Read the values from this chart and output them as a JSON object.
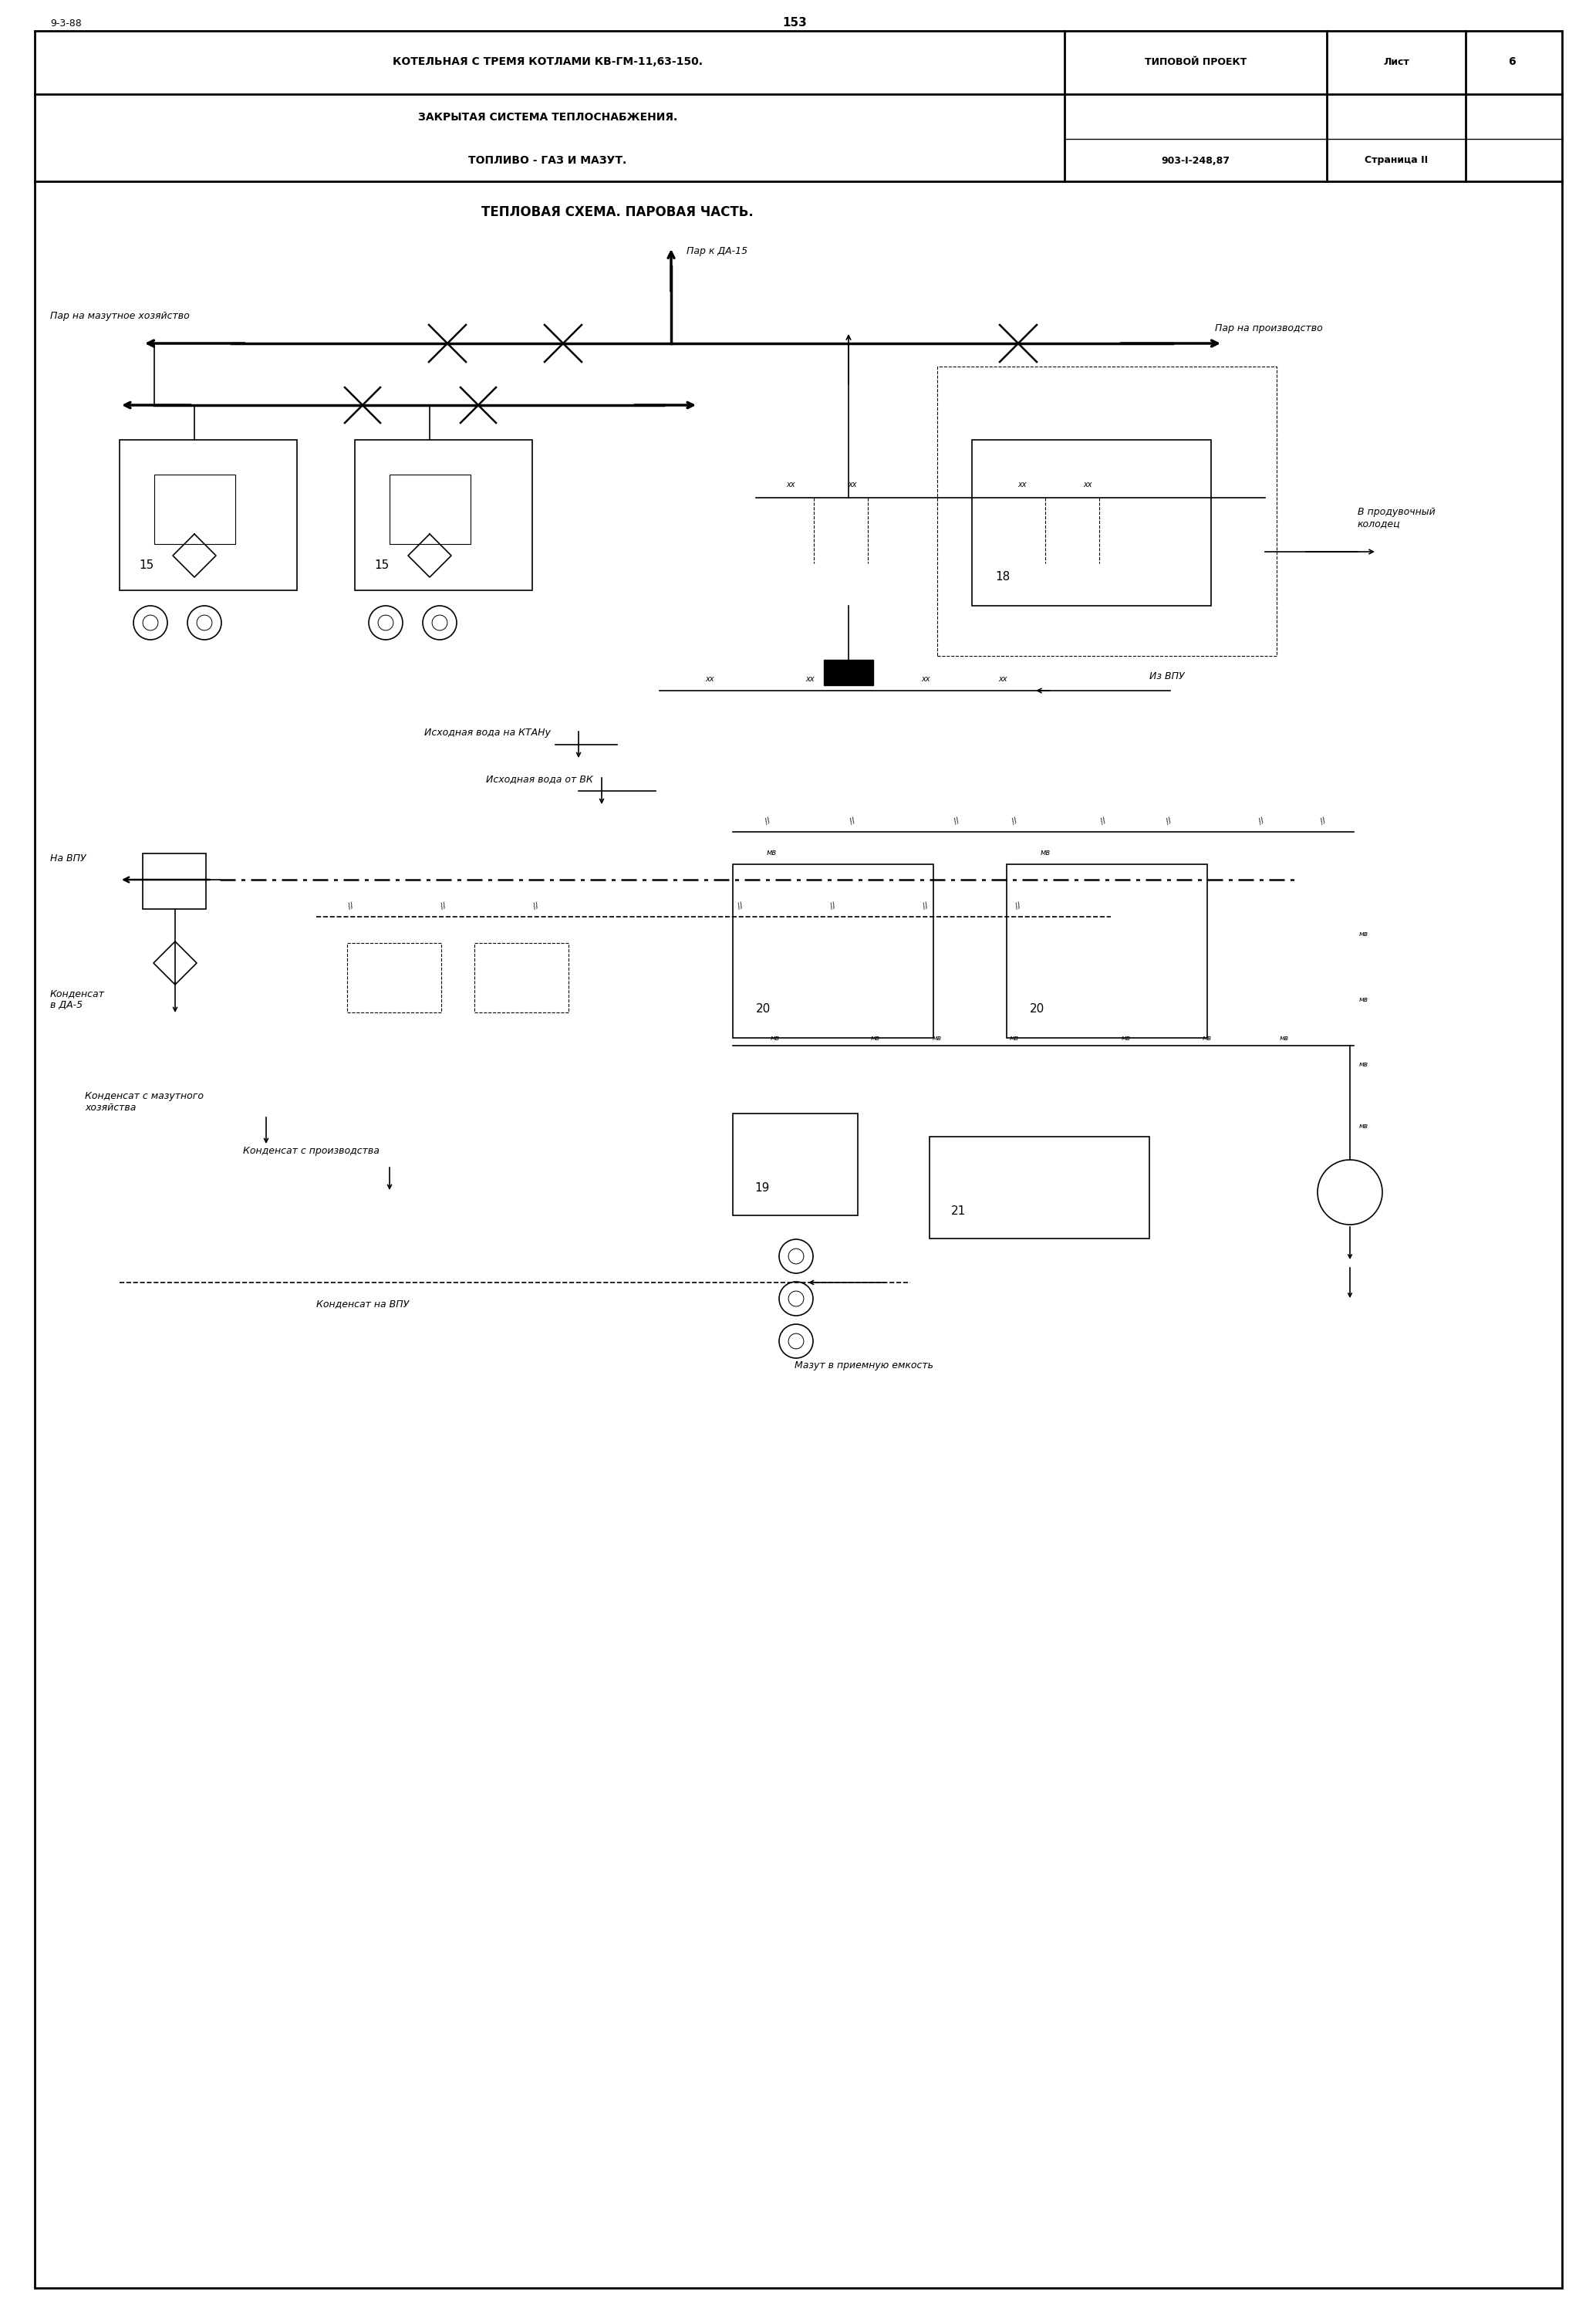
{
  "page_num": "153",
  "date_ref": "9-3-88",
  "title_main": "КОТЕЛЬНАЯ С ТРЕМЯ КОТЛАМИ КВ-ГМ-11,63-150.",
  "title_sub1": "ЗАКРЫТАЯ СИСТЕМА ТЕПЛОСНАБЖЕНИЯ.",
  "title_sub2": "ТОПЛИВО - ГАЗ И МАЗУТ.",
  "title_right1": "ТИПОВОЙ ПРОЕКТ",
  "title_right2": "Лист",
  "title_right3": "6",
  "title_right4": "903-I-248,87",
  "title_right5": "Страница II",
  "section_title": "ТЕПЛОВАЯ СХЕМА. ПАРОВАЯ ЧАСТЬ.",
  "bg_color": "#ffffff",
  "label_par_da15": "Пар к ДА-15",
  "label_par_mazut": "Пар на мазутное хозяйство",
  "label_par_production": "Пар на производство",
  "label_produvka": "В продувочный\nколодец",
  "label_iz_vpu": "Из ВПУ",
  "label_isk_voda_ktanu": "Исходная вода на КТАНу",
  "label_isk_voda_bk": "Исходная вода от ВК",
  "label_na_vpu": "На ВПУ",
  "label_kond_da5": "Конденсат\nв ДА-5",
  "label_kond_mazut": "Конденсат с мазутного\nхозяйства",
  "label_kond_production": "Конденсат с производства",
  "label_kond_na_vpu": "Конденсат на ВПУ",
  "label_mazut_emkost": "Мазут в приемную емкость",
  "num_15a": "15",
  "num_15b": "15",
  "num_18": "18",
  "num_19": "19",
  "num_20a": "20",
  "num_20b": "20",
  "num_21": "21",
  "mv": "мв",
  "xx": "xx"
}
